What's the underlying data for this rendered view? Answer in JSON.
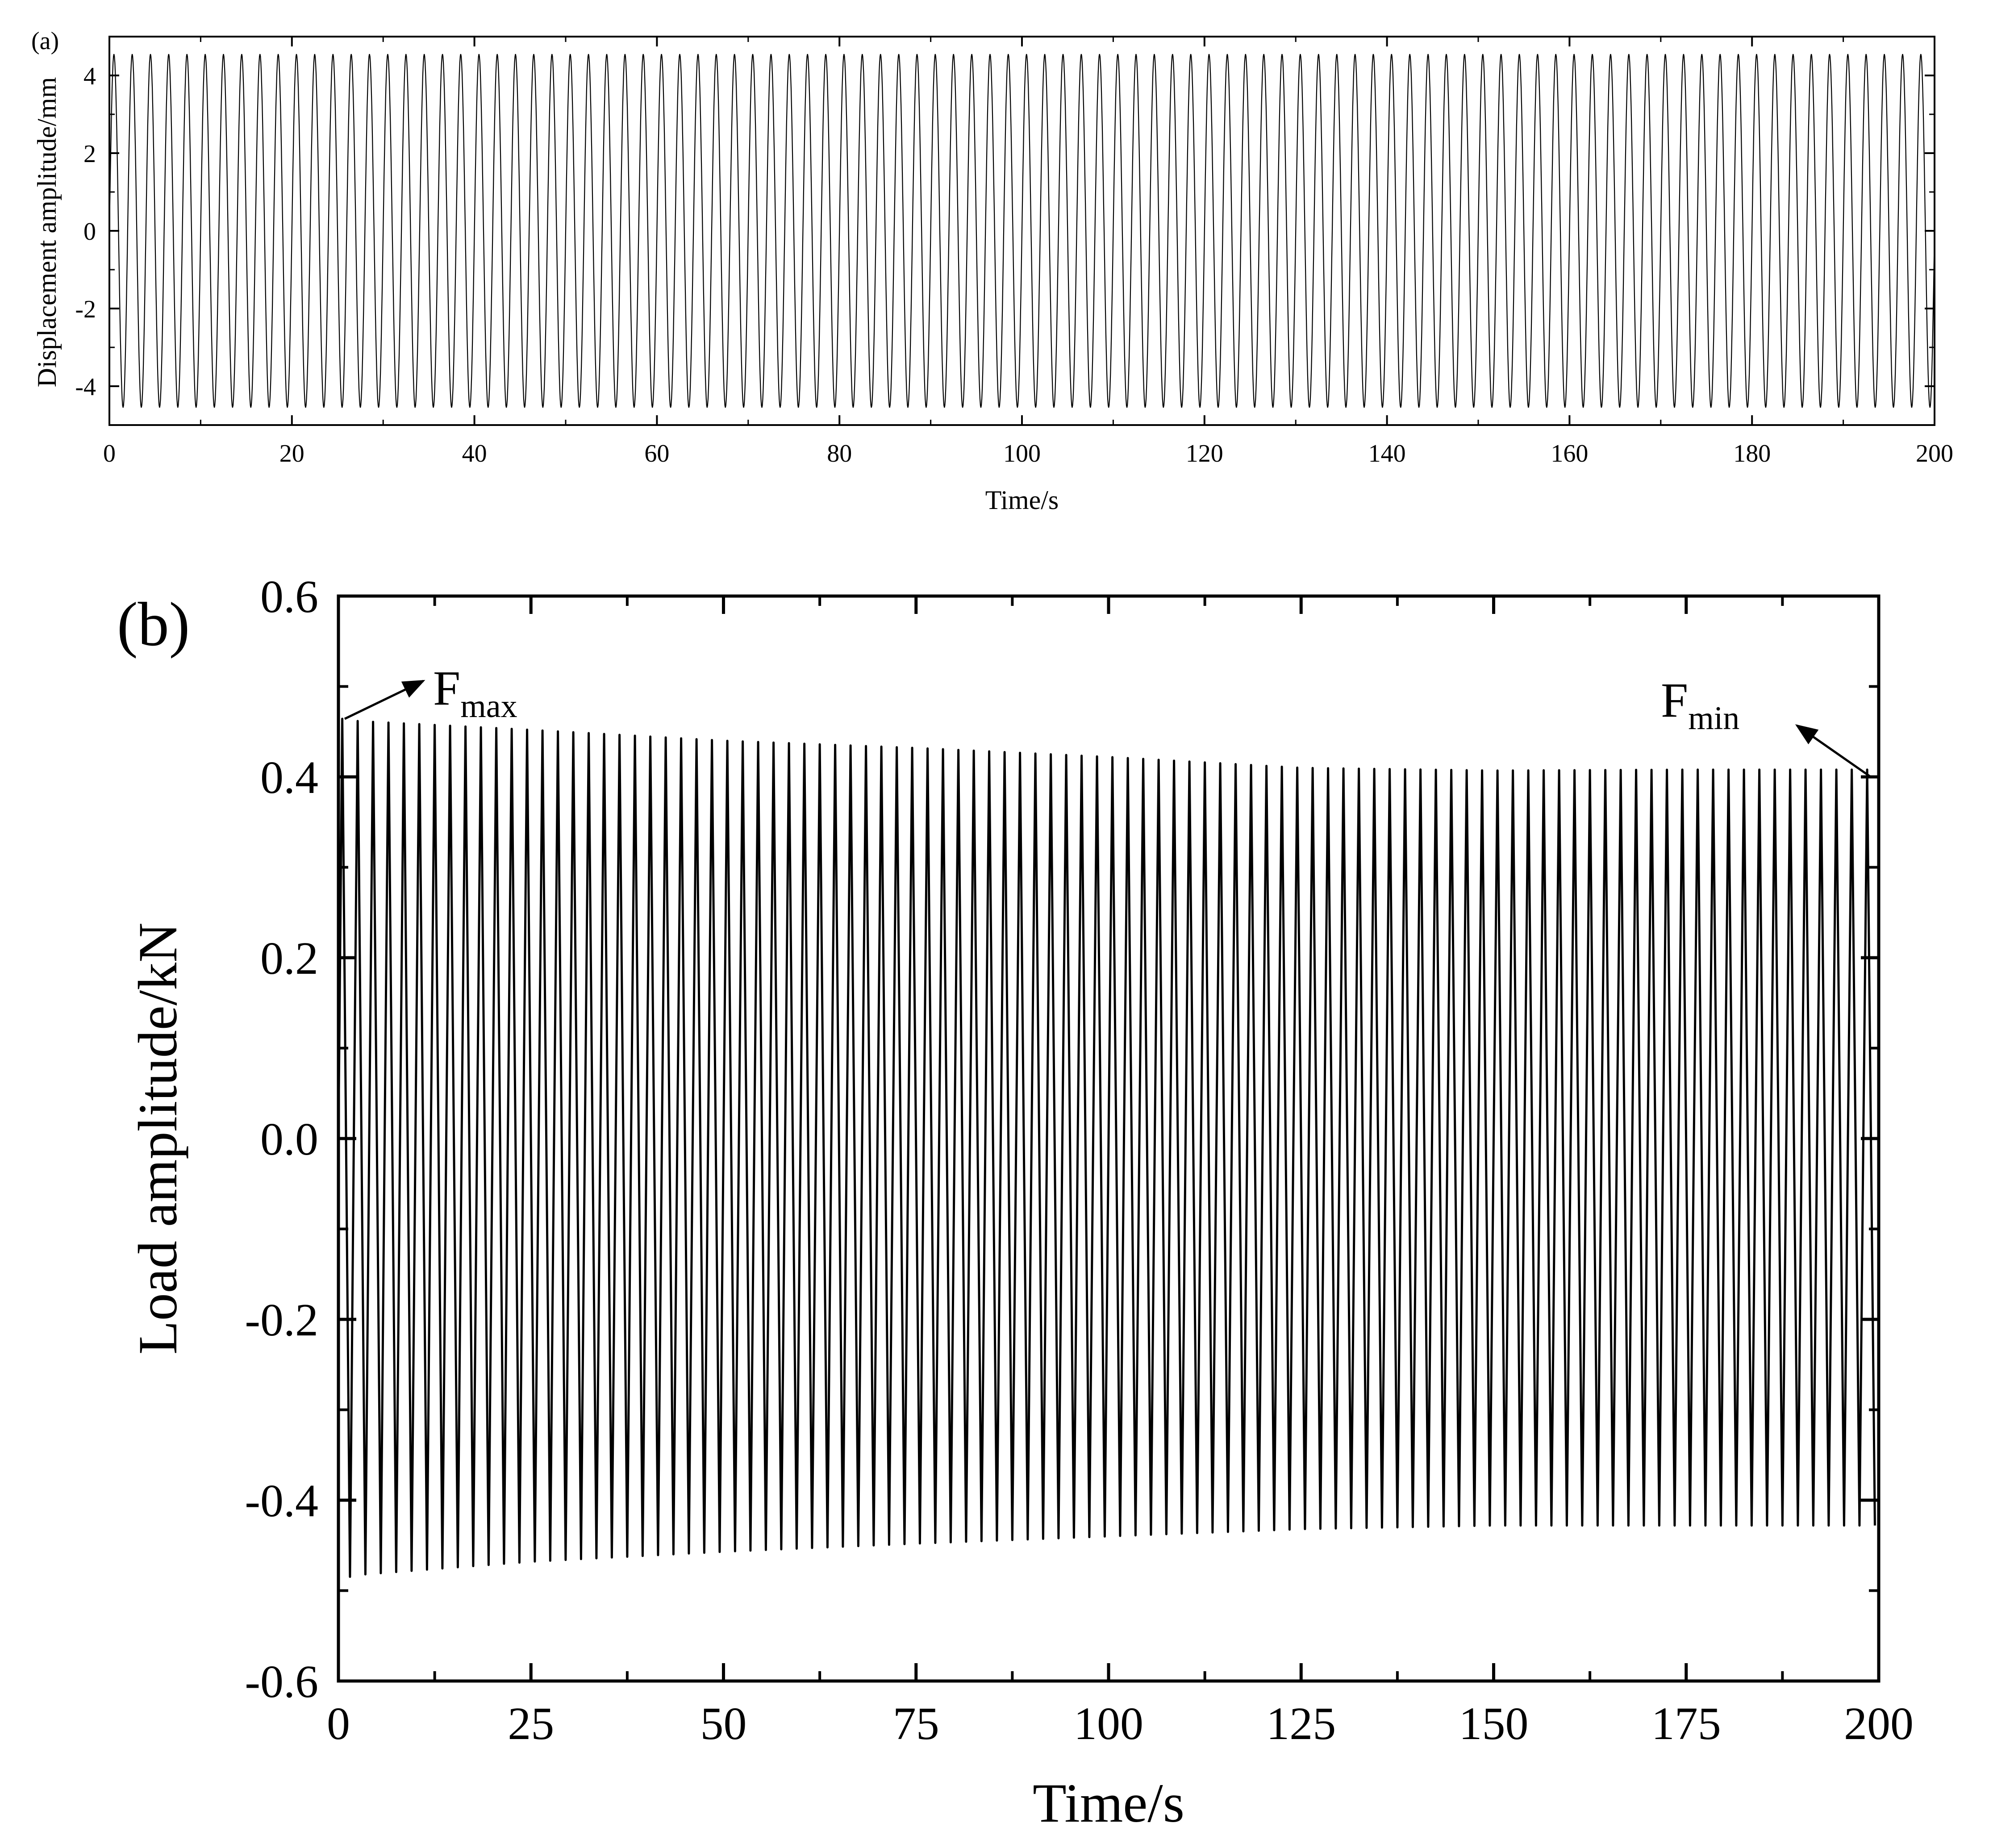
{
  "chart_data": [
    {
      "type": "line",
      "panel_label": "(a)",
      "xlabel": "Time/s",
      "ylabel": "Displacement amplitude/mm",
      "xlim": [
        0,
        200
      ],
      "ylim": [
        -5,
        5
      ],
      "xticks": [
        "0",
        "20",
        "40",
        "60",
        "80",
        "100",
        "120",
        "140",
        "160",
        "180",
        "200"
      ],
      "yticks": [
        "4",
        "2",
        "0",
        "-2",
        "-4"
      ],
      "series": [
        {
          "frequency_hz": 0.5,
          "amplitude": 4.55,
          "sample_step": 0.05
        }
      ]
    },
    {
      "type": "line",
      "panel_label": "(b)",
      "xlabel": "Time/s",
      "ylabel": "Load amplitude/kN",
      "xlim": [
        0,
        200
      ],
      "ylim": [
        -0.6,
        0.6
      ],
      "xticks": [
        "0",
        "25",
        "50",
        "75",
        "100",
        "125",
        "150",
        "175",
        "200"
      ],
      "yticks": [
        "0.6",
        "0.4",
        "0.2",
        "0.0",
        "-0.2",
        "-0.4",
        "-0.6"
      ],
      "series": [
        {
          "frequency_hz": 0.5,
          "peak_envelope": {
            "t": [
              0,
              2,
              25,
              50,
              75,
              100,
              125,
              150,
              175,
              200
            ],
            "v": [
              0.465,
              0.462,
              0.452,
              0.44,
              0.432,
              0.422,
              0.41,
              0.407,
              0.408,
              0.408
            ]
          },
          "trough_envelope": {
            "t": [
              0,
              2,
              25,
              50,
              75,
              100,
              125,
              150,
              175,
              200
            ],
            "v": [
              -0.49,
              -0.483,
              -0.468,
              -0.457,
              -0.448,
              -0.44,
              -0.432,
              -0.428,
              -0.428,
              -0.428
            ]
          }
        }
      ],
      "annotations": [
        {
          "text": "F",
          "subscript": "max"
        },
        {
          "text": "F",
          "subscript": "min"
        }
      ]
    }
  ]
}
